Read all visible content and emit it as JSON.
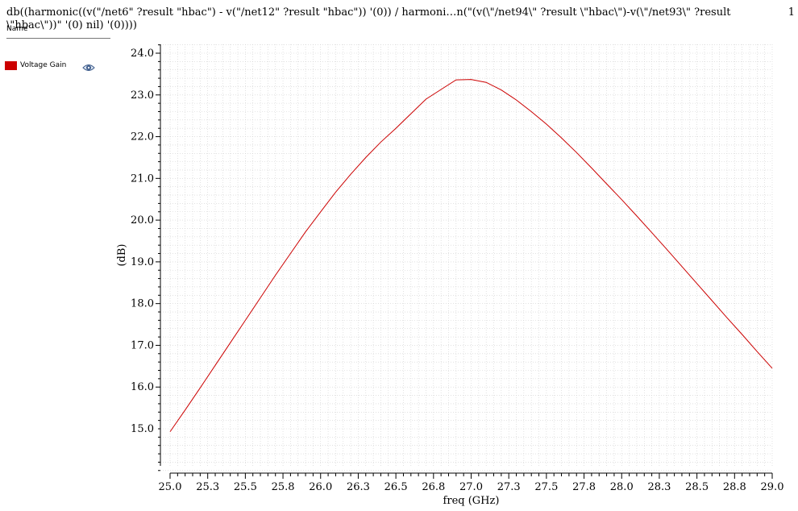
{
  "header": {
    "expression": "db((harmonic((v(\"/net6\" ?result \"hbac\") - v(\"/net12\" ?result \"hbac\")) '(0)) / harmoni…n(\"(v(\\\"/net94\\\" ?result \\\"hbac\\\")-v(\\\"/net93\\\" ?result \\\"hbac\\\"))\" '(0) nil) '(0))))",
    "page_number": "1"
  },
  "legend": {
    "header": "Name",
    "items": [
      {
        "label": "Voltage Gain",
        "color": "#cc0000",
        "visible_icon": "eye-icon"
      }
    ]
  },
  "chart_data": {
    "type": "line",
    "xlabel": "freq (GHz)",
    "ylabel": "(dB)",
    "xlim": [
      25.0,
      29.0
    ],
    "ylim": [
      14.0,
      24.2
    ],
    "xticks": [
      "25.0",
      "25.3",
      "25.5",
      "25.8",
      "26.0",
      "26.3",
      "26.5",
      "26.8",
      "27.0",
      "27.3",
      "27.5",
      "27.8",
      "28.0",
      "28.3",
      "28.5",
      "28.8",
      "29.0"
    ],
    "yticks": [
      "15.0",
      "16.0",
      "17.0",
      "18.0",
      "19.0",
      "20.0",
      "21.0",
      "22.0",
      "23.0",
      "24.0"
    ],
    "grid": true,
    "series": [
      {
        "name": "Voltage Gain",
        "color": "#cc0000",
        "x": [
          25.0,
          25.1,
          25.2,
          25.3,
          25.4,
          25.5,
          25.6,
          25.7,
          25.8,
          25.9,
          26.0,
          26.1,
          26.2,
          26.3,
          26.4,
          26.5,
          26.6,
          26.7,
          26.8,
          26.9,
          27.0,
          27.1,
          27.2,
          27.3,
          27.4,
          27.5,
          27.6,
          27.7,
          27.8,
          27.9,
          28.0,
          28.1,
          28.2,
          28.3,
          28.4,
          28.5,
          28.6,
          28.7,
          28.8,
          28.9,
          29.0
        ],
        "y": [
          14.93,
          15.45,
          15.98,
          16.52,
          17.06,
          17.6,
          18.14,
          18.68,
          19.2,
          19.72,
          20.2,
          20.67,
          21.1,
          21.5,
          21.87,
          22.2,
          22.55,
          22.9,
          23.13,
          23.36,
          23.37,
          23.3,
          23.12,
          22.88,
          22.6,
          22.3,
          21.97,
          21.62,
          21.25,
          20.87,
          20.49,
          20.1,
          19.7,
          19.3,
          18.89,
          18.48,
          18.07,
          17.66,
          17.26,
          16.85,
          16.45
        ]
      }
    ]
  }
}
